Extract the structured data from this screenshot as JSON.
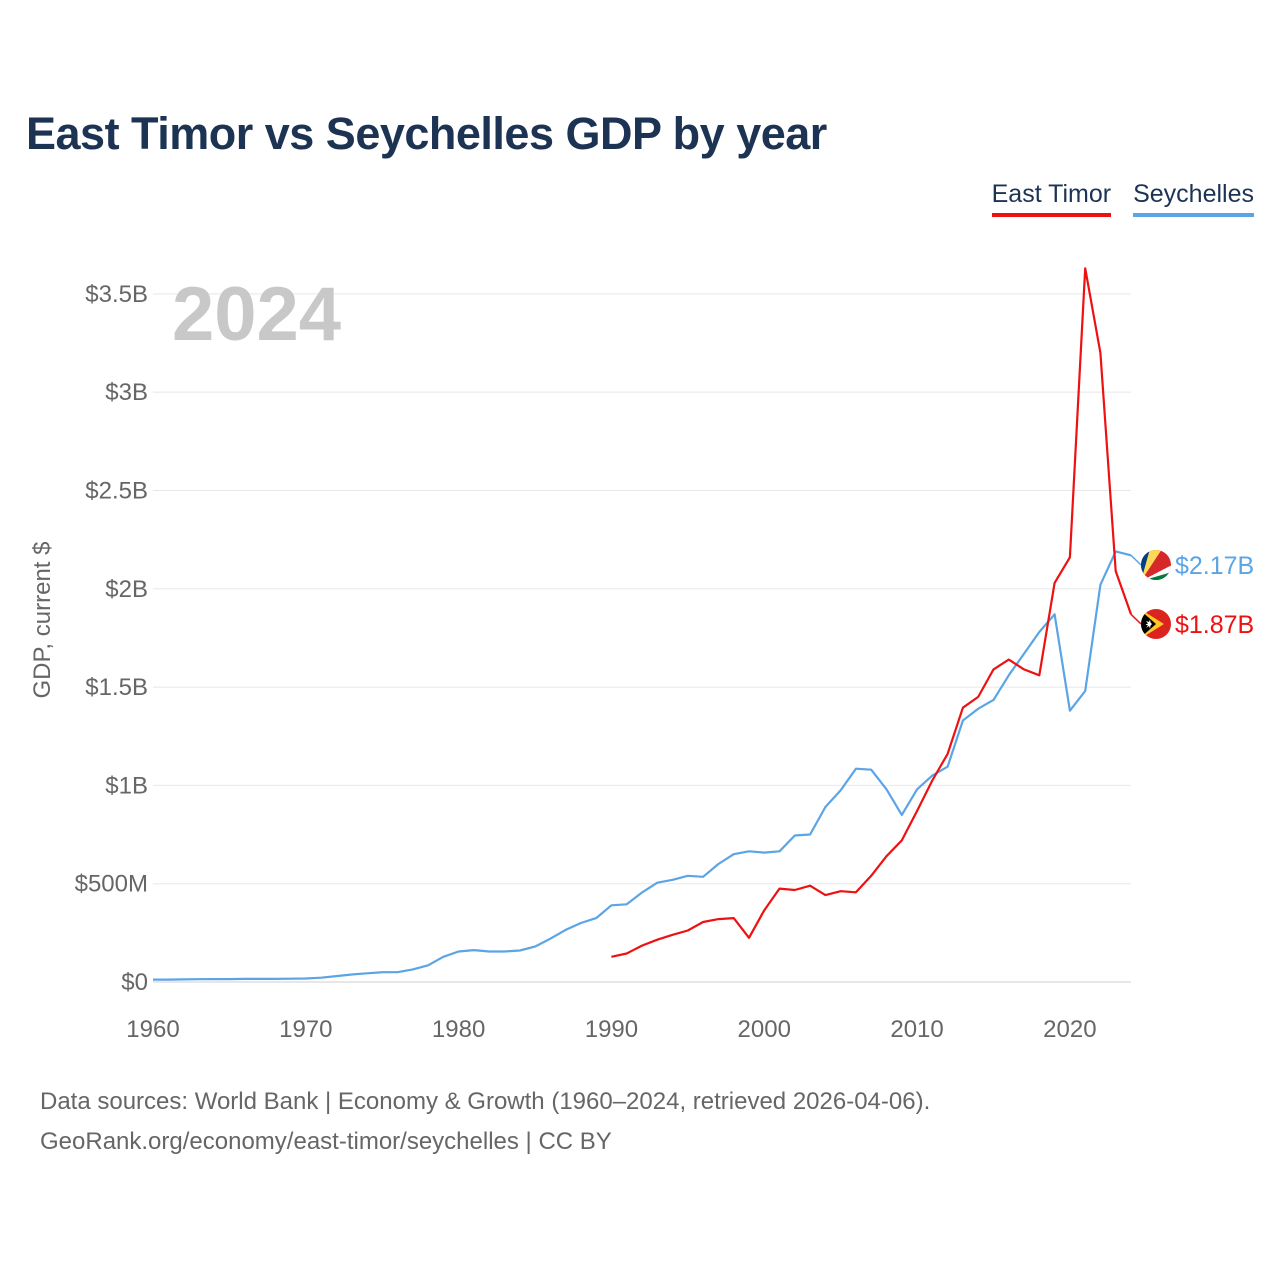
{
  "header": {
    "title": "East Timor vs Seychelles GDP by year"
  },
  "legend": [
    {
      "label": "East Timor",
      "color": "#ee1111"
    },
    {
      "label": "Seychelles",
      "color": "#5ba4e6"
    }
  ],
  "footer": {
    "sources": "Data sources: World Bank | Economy & Growth (1960–2024, retrieved 2026-04-06).",
    "credit": "GeoRank.org/economy/east-timor/seychelles | CC BY"
  },
  "chart_data": {
    "type": "line",
    "title": "East Timor vs Seychelles GDP by year",
    "ylabel": "GDP, current $",
    "xlabel": "",
    "year_watermark": "2024",
    "xlim": [
      1960,
      2024
    ],
    "ylim": [
      0,
      3750000000
    ],
    "x_ticks": [
      1960,
      1970,
      1980,
      1990,
      2000,
      2010,
      2020
    ],
    "y_ticks": [
      {
        "value": 0,
        "label": "$0"
      },
      {
        "value": 500000000,
        "label": "$500M"
      },
      {
        "value": 1000000000,
        "label": "$1B"
      },
      {
        "value": 1500000000,
        "label": "$1.5B"
      },
      {
        "value": 2000000000,
        "label": "$2B"
      },
      {
        "value": 2500000000,
        "label": "$2.5B"
      },
      {
        "value": 3000000000,
        "label": "$3B"
      },
      {
        "value": 3500000000,
        "label": "$3.5B"
      }
    ],
    "grid": true,
    "series": [
      {
        "name": "Seychelles",
        "color": "#5ba4e6",
        "end_label": "$2.17B",
        "x": [
          1960,
          1961,
          1962,
          1963,
          1964,
          1965,
          1966,
          1967,
          1968,
          1969,
          1970,
          1971,
          1972,
          1973,
          1974,
          1975,
          1976,
          1977,
          1978,
          1979,
          1980,
          1981,
          1982,
          1983,
          1984,
          1985,
          1986,
          1987,
          1988,
          1989,
          1990,
          1991,
          1992,
          1993,
          1994,
          1995,
          1996,
          1997,
          1998,
          1999,
          2000,
          2001,
          2002,
          2003,
          2004,
          2005,
          2006,
          2007,
          2008,
          2009,
          2010,
          2011,
          2012,
          2013,
          2014,
          2015,
          2016,
          2017,
          2018,
          2019,
          2020,
          2021,
          2022,
          2023,
          2024
        ],
        "values": [
          12000000,
          12000000,
          13000000,
          14000000,
          15000000,
          15000000,
          16000000,
          16000000,
          16000000,
          17000000,
          18000000,
          22000000,
          30000000,
          38000000,
          44000000,
          50000000,
          50000000,
          64000000,
          85000000,
          128000000,
          155000000,
          162000000,
          155000000,
          155000000,
          160000000,
          180000000,
          220000000,
          265000000,
          300000000,
          325000000,
          390000000,
          395000000,
          455000000,
          505000000,
          520000000,
          540000000,
          535000000,
          600000000,
          650000000,
          665000000,
          658000000,
          665000000,
          745000000,
          750000000,
          890000000,
          975000000,
          1085000000,
          1080000000,
          980000000,
          850000000,
          980000000,
          1050000000,
          1095000000,
          1330000000,
          1390000000,
          1435000000,
          1560000000,
          1670000000,
          1780000000,
          1870000000,
          1380000000,
          1480000000,
          2020000000,
          2190000000,
          2170000000
        ]
      },
      {
        "name": "East Timor",
        "color": "#ee1111",
        "end_label": "$1.87B",
        "x": [
          1990,
          1991,
          1992,
          1993,
          1994,
          1995,
          1996,
          1997,
          1998,
          1999,
          2000,
          2001,
          2002,
          2003,
          2004,
          2005,
          2006,
          2007,
          2008,
          2009,
          2010,
          2011,
          2012,
          2013,
          2014,
          2015,
          2016,
          2017,
          2018,
          2019,
          2020,
          2021,
          2022,
          2023,
          2024
        ],
        "values": [
          128000000,
          145000000,
          185000000,
          215000000,
          240000000,
          262000000,
          305000000,
          320000000,
          325000000,
          225000000,
          365000000,
          475000000,
          468000000,
          490000000,
          442000000,
          462000000,
          456000000,
          540000000,
          640000000,
          720000000,
          870000000,
          1025000000,
          1160000000,
          1395000000,
          1450000000,
          1590000000,
          1640000000,
          1590000000,
          1560000000,
          2030000000,
          2160000000,
          3630000000,
          3200000000,
          2090000000,
          1870000000
        ]
      }
    ]
  }
}
